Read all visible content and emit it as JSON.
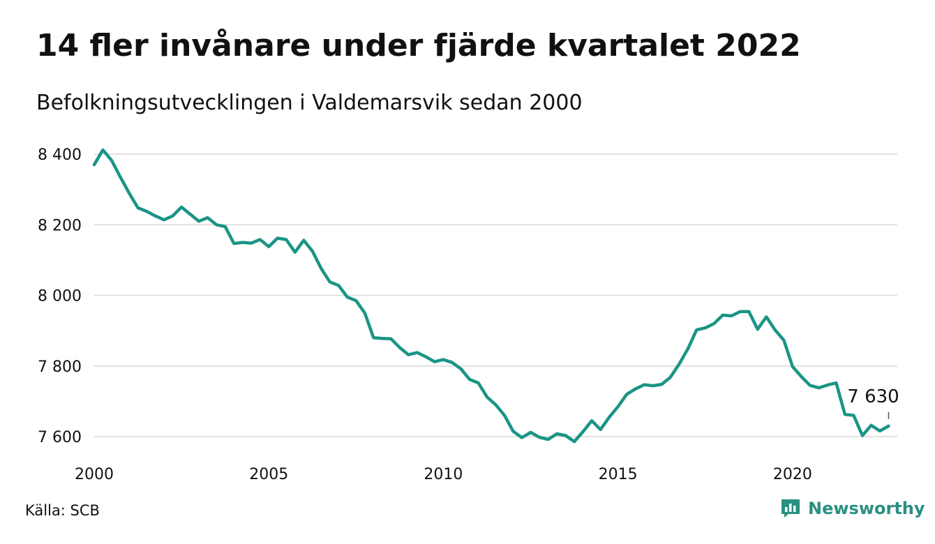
{
  "header": {
    "title": "14 fler invånare under fjärde kvartalet 2022",
    "subtitle": "Befolkningsutvecklingen i Valdemarsvik sedan 2000"
  },
  "footer": {
    "source": "Källa: SCB",
    "brand_name": "Newsworthy"
  },
  "colors": {
    "line": "#1a9485",
    "grid": "#d9d9d9",
    "brand": "#2a8f81"
  },
  "chart_data": {
    "type": "line",
    "title": "14 fler invånare under fjärde kvartalet 2022",
    "subtitle": "Befolkningsutvecklingen i Valdemarsvik sedan 2000",
    "xlabel": "",
    "ylabel": "",
    "xlim": [
      2000,
      2023
    ],
    "ylim": [
      7600,
      8400
    ],
    "x_ticks": [
      2000,
      2005,
      2010,
      2015,
      2020
    ],
    "x_tick_labels": [
      "2000",
      "2005",
      "2010",
      "2015",
      "2020"
    ],
    "y_ticks": [
      7600,
      7800,
      8000,
      8200,
      8400
    ],
    "y_tick_labels": [
      "7 600",
      "7 800",
      "8 000",
      "8 200",
      "8 400"
    ],
    "grid": "horizontal",
    "legend": "none",
    "end_label": "7 630",
    "series": [
      {
        "x": [
          2000.0,
          2000.25,
          2000.5,
          2000.75,
          2001.0,
          2001.25,
          2001.5,
          2001.75,
          2002.0,
          2002.25,
          2002.5,
          2002.75,
          2003.0,
          2003.25,
          2003.5,
          2003.75,
          2004.0,
          2004.25,
          2004.5,
          2004.75,
          2005.0,
          2005.25,
          2005.5,
          2005.75,
          2006.0,
          2006.25,
          2006.5,
          2006.75,
          2007.0,
          2007.25,
          2007.5,
          2007.75,
          2008.0,
          2008.25,
          2008.5,
          2008.75,
          2009.0,
          2009.25,
          2009.5,
          2009.75,
          2010.0,
          2010.25,
          2010.5,
          2010.75,
          2011.0,
          2011.25,
          2011.5,
          2011.75,
          2012.0,
          2012.25,
          2012.5,
          2012.75,
          2013.0,
          2013.25,
          2013.5,
          2013.75,
          2014.0,
          2014.25,
          2014.5,
          2014.75,
          2015.0,
          2015.25,
          2015.5,
          2015.75,
          2016.0,
          2016.25,
          2016.5,
          2016.75,
          2017.0,
          2017.25,
          2017.5,
          2017.75,
          2018.0,
          2018.25,
          2018.5,
          2018.75,
          2019.0,
          2019.25,
          2019.5,
          2019.75,
          2020.0,
          2020.25,
          2020.5,
          2020.75,
          2021.0,
          2021.25,
          2021.5,
          2021.75,
          2022.0,
          2022.25,
          2022.5,
          2022.75
        ],
        "values": [
          8370,
          8412,
          8382,
          8335,
          8290,
          8248,
          8238,
          8225,
          8214,
          8225,
          8250,
          8230,
          8210,
          8220,
          8200,
          8195,
          8147,
          8150,
          8148,
          8158,
          8138,
          8162,
          8158,
          8122,
          8156,
          8125,
          8076,
          8038,
          8028,
          7995,
          7985,
          7950,
          7880,
          7878,
          7877,
          7852,
          7832,
          7838,
          7826,
          7812,
          7818,
          7810,
          7792,
          7762,
          7752,
          7712,
          7690,
          7660,
          7615,
          7597,
          7612,
          7598,
          7592,
          7608,
          7603,
          7586,
          7614,
          7645,
          7620,
          7655,
          7685,
          7720,
          7735,
          7747,
          7744,
          7748,
          7768,
          7805,
          7848,
          7902,
          7908,
          7920,
          7944,
          7942,
          7954,
          7954,
          7904,
          7939,
          7902,
          7873,
          7798,
          7770,
          7745,
          7738,
          7746,
          7752,
          7663,
          7660,
          7603,
          7632,
          7616,
          7630
        ]
      }
    ]
  }
}
